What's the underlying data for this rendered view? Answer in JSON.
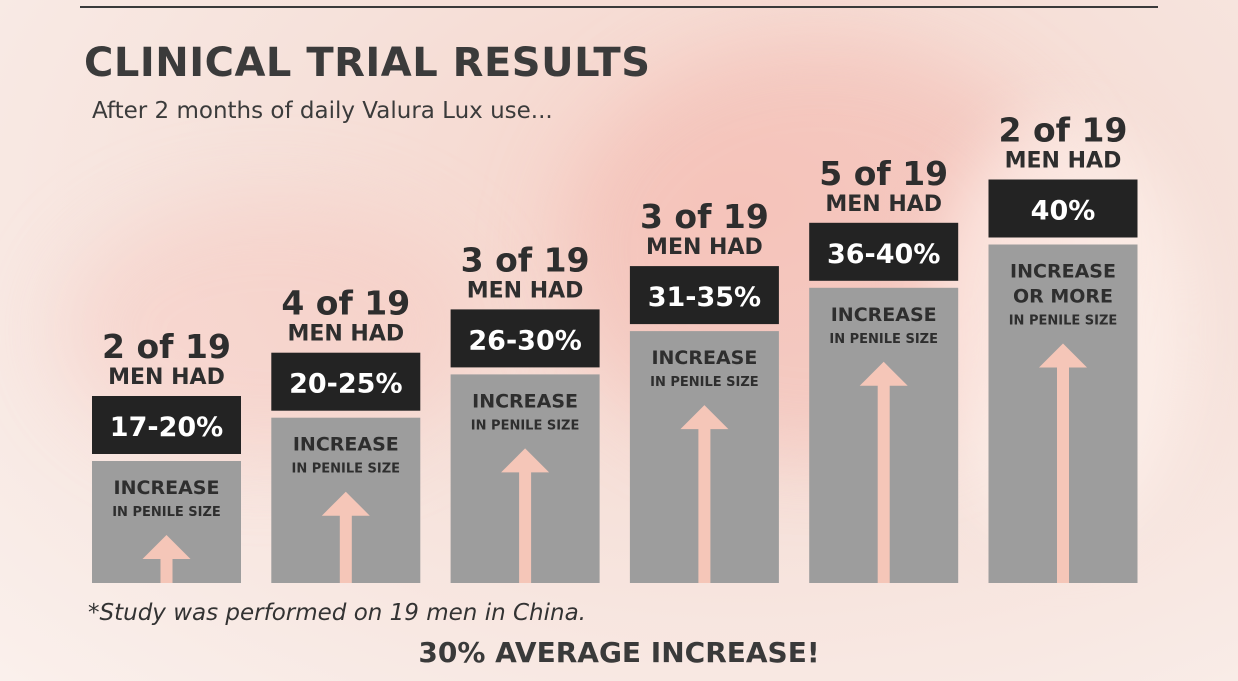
{
  "title": "CLINICAL TRIAL RESULTS",
  "subtitle": "After 2 months of daily Valura Lux use...",
  "footnote": "*Study was performed on 19 men in China.",
  "average": "30% AVERAGE INCREASE!",
  "colors": {
    "bar": "#9d9d9d",
    "label_box": "#232323",
    "arrow": "#f5c6b8",
    "text_dark": "#2e2e2e"
  },
  "chart_data": {
    "type": "bar",
    "categories": [
      "17-20%",
      "20-25%",
      "26-30%",
      "31-35%",
      "36-40%",
      "40%"
    ],
    "values": [
      2,
      4,
      3,
      3,
      5,
      2
    ],
    "total": 19,
    "count_labels": [
      "2 of 19",
      "4 of 19",
      "3 of 19",
      "3 of 19",
      "5 of 19",
      "2 of 19"
    ],
    "men_had_label": "MEN HAD",
    "increase_labels": [
      "INCREASE",
      "INCREASE",
      "INCREASE",
      "INCREASE",
      "INCREASE",
      "INCREASE\nOR MORE"
    ],
    "penile_label": "IN PENILE SIZE"
  }
}
